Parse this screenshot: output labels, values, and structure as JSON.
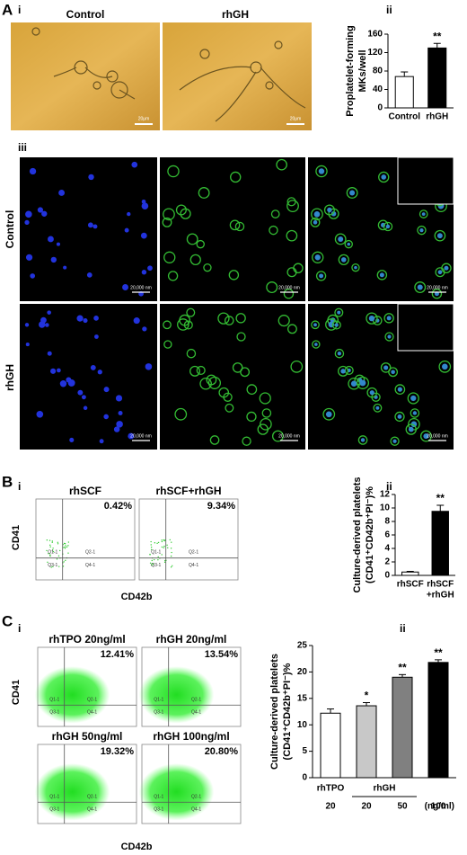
{
  "panels": {
    "A": {
      "letter": "A",
      "i": "i",
      "ii": "ii",
      "iii": "iii",
      "control": "Control",
      "rhgh": "rhGH",
      "scale_bar": "20μm",
      "scale_nm": "20,000 nm",
      "row_labels": [
        "Control",
        "rhGH"
      ]
    },
    "B": {
      "letter": "B",
      "i": "i",
      "ii": "ii",
      "titles": [
        "rhSCF",
        "rhSCF+rhGH"
      ],
      "percents": [
        "0.42%",
        "9.34%"
      ],
      "y_label": "CD41",
      "x_label": "CD42b",
      "quadrants": [
        "Q1-1",
        "Q2-1",
        "Q3-1",
        "Q4-1"
      ]
    },
    "C": {
      "letter": "C",
      "i": "i",
      "ii": "ii",
      "titles": [
        "rhTPO 20ng/ml",
        "rhGH 20ng/ml",
        "rhGH 50ng/ml",
        "rhGH 100ng/ml"
      ],
      "percents": [
        "12.41%",
        "13.54%",
        "19.32%",
        "20.80%"
      ],
      "y_label": "CD41",
      "x_label": "CD42b",
      "quadrants": [
        "Q1-1",
        "Q2-1",
        "Q3-1",
        "Q4-1"
      ]
    }
  },
  "chart_data": [
    {
      "type": "bar",
      "ylabel": [
        "Proplatelet-forming",
        "MKs/well"
      ],
      "categories": [
        "Control",
        "rhGH"
      ],
      "values": [
        68,
        130
      ],
      "errors": [
        10,
        10
      ],
      "colors": [
        "#ffffff",
        "#000000"
      ],
      "significance": [
        null,
        "**"
      ],
      "ylim": [
        0,
        160
      ],
      "yticks": [
        0,
        40,
        80,
        120,
        160
      ]
    },
    {
      "type": "bar",
      "ylabel": [
        "Culture-derived platelets",
        "(CD41⁺CD42b⁺PI⁻)%"
      ],
      "categories": [
        "rhSCF",
        [
          "rhSCF",
          "+rhGH"
        ]
      ],
      "values": [
        0.5,
        9.5
      ],
      "errors": [
        0.1,
        0.9
      ],
      "colors": [
        "#ffffff",
        "#000000"
      ],
      "significance": [
        null,
        "**"
      ],
      "ylim": [
        0,
        12
      ],
      "yticks": [
        0,
        2,
        4,
        6,
        8,
        10,
        12
      ]
    },
    {
      "type": "bar",
      "ylabel": [
        "Culture-derived platelets",
        "(CD41⁺CD42b⁺PI⁻)%"
      ],
      "categories": [
        "20",
        "20",
        "50",
        "100"
      ],
      "group_labels": [
        "rhTPO",
        "rhGH"
      ],
      "x_unit": "(ng/ml)",
      "values": [
        12.2,
        13.6,
        19,
        21.8
      ],
      "errors": [
        0.8,
        0.6,
        0.5,
        0.5
      ],
      "colors": [
        "#ffffff",
        "#c8c8c8",
        "#808080",
        "#000000"
      ],
      "significance": [
        null,
        "*",
        "**",
        "**"
      ],
      "ylim": [
        0,
        25
      ],
      "yticks": [
        0,
        5,
        10,
        15,
        20,
        25
      ]
    }
  ]
}
